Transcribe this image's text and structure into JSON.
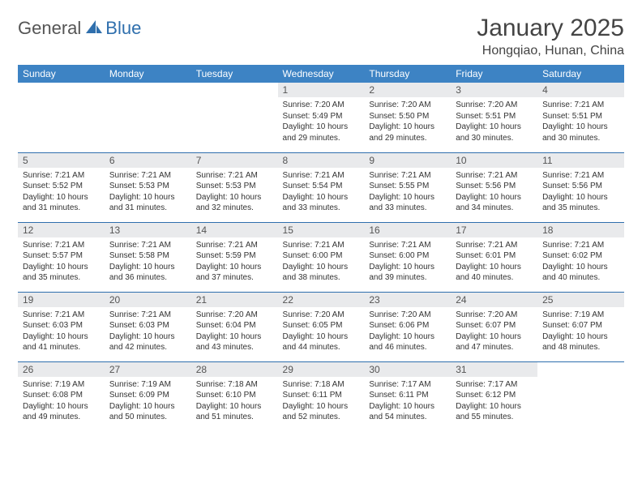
{
  "logo": {
    "general": "General",
    "blue": "Blue"
  },
  "title": "January 2025",
  "location": "Hongqiao, Hunan, China",
  "colors": {
    "header_bg": "#3d83c4",
    "header_text": "#ffffff",
    "daynum_bg": "#e9eaec",
    "border": "#2f6fad",
    "text": "#333333",
    "logo_gray": "#555555",
    "logo_blue": "#2f6fad",
    "background": "#ffffff"
  },
  "typography": {
    "title_fontsize": 30,
    "location_fontsize": 16,
    "header_fontsize": 12,
    "daynum_fontsize": 12,
    "body_fontsize": 10
  },
  "weekdays": [
    "Sunday",
    "Monday",
    "Tuesday",
    "Wednesday",
    "Thursday",
    "Friday",
    "Saturday"
  ],
  "weeks": [
    [
      null,
      null,
      null,
      {
        "num": "1",
        "sunrise": "7:20 AM",
        "sunset": "5:49 PM",
        "daylight": "10 hours and 29 minutes."
      },
      {
        "num": "2",
        "sunrise": "7:20 AM",
        "sunset": "5:50 PM",
        "daylight": "10 hours and 29 minutes."
      },
      {
        "num": "3",
        "sunrise": "7:20 AM",
        "sunset": "5:51 PM",
        "daylight": "10 hours and 30 minutes."
      },
      {
        "num": "4",
        "sunrise": "7:21 AM",
        "sunset": "5:51 PM",
        "daylight": "10 hours and 30 minutes."
      }
    ],
    [
      {
        "num": "5",
        "sunrise": "7:21 AM",
        "sunset": "5:52 PM",
        "daylight": "10 hours and 31 minutes."
      },
      {
        "num": "6",
        "sunrise": "7:21 AM",
        "sunset": "5:53 PM",
        "daylight": "10 hours and 31 minutes."
      },
      {
        "num": "7",
        "sunrise": "7:21 AM",
        "sunset": "5:53 PM",
        "daylight": "10 hours and 32 minutes."
      },
      {
        "num": "8",
        "sunrise": "7:21 AM",
        "sunset": "5:54 PM",
        "daylight": "10 hours and 33 minutes."
      },
      {
        "num": "9",
        "sunrise": "7:21 AM",
        "sunset": "5:55 PM",
        "daylight": "10 hours and 33 minutes."
      },
      {
        "num": "10",
        "sunrise": "7:21 AM",
        "sunset": "5:56 PM",
        "daylight": "10 hours and 34 minutes."
      },
      {
        "num": "11",
        "sunrise": "7:21 AM",
        "sunset": "5:56 PM",
        "daylight": "10 hours and 35 minutes."
      }
    ],
    [
      {
        "num": "12",
        "sunrise": "7:21 AM",
        "sunset": "5:57 PM",
        "daylight": "10 hours and 35 minutes."
      },
      {
        "num": "13",
        "sunrise": "7:21 AM",
        "sunset": "5:58 PM",
        "daylight": "10 hours and 36 minutes."
      },
      {
        "num": "14",
        "sunrise": "7:21 AM",
        "sunset": "5:59 PM",
        "daylight": "10 hours and 37 minutes."
      },
      {
        "num": "15",
        "sunrise": "7:21 AM",
        "sunset": "6:00 PM",
        "daylight": "10 hours and 38 minutes."
      },
      {
        "num": "16",
        "sunrise": "7:21 AM",
        "sunset": "6:00 PM",
        "daylight": "10 hours and 39 minutes."
      },
      {
        "num": "17",
        "sunrise": "7:21 AM",
        "sunset": "6:01 PM",
        "daylight": "10 hours and 40 minutes."
      },
      {
        "num": "18",
        "sunrise": "7:21 AM",
        "sunset": "6:02 PM",
        "daylight": "10 hours and 40 minutes."
      }
    ],
    [
      {
        "num": "19",
        "sunrise": "7:21 AM",
        "sunset": "6:03 PM",
        "daylight": "10 hours and 41 minutes."
      },
      {
        "num": "20",
        "sunrise": "7:21 AM",
        "sunset": "6:03 PM",
        "daylight": "10 hours and 42 minutes."
      },
      {
        "num": "21",
        "sunrise": "7:20 AM",
        "sunset": "6:04 PM",
        "daylight": "10 hours and 43 minutes."
      },
      {
        "num": "22",
        "sunrise": "7:20 AM",
        "sunset": "6:05 PM",
        "daylight": "10 hours and 44 minutes."
      },
      {
        "num": "23",
        "sunrise": "7:20 AM",
        "sunset": "6:06 PM",
        "daylight": "10 hours and 46 minutes."
      },
      {
        "num": "24",
        "sunrise": "7:20 AM",
        "sunset": "6:07 PM",
        "daylight": "10 hours and 47 minutes."
      },
      {
        "num": "25",
        "sunrise": "7:19 AM",
        "sunset": "6:07 PM",
        "daylight": "10 hours and 48 minutes."
      }
    ],
    [
      {
        "num": "26",
        "sunrise": "7:19 AM",
        "sunset": "6:08 PM",
        "daylight": "10 hours and 49 minutes."
      },
      {
        "num": "27",
        "sunrise": "7:19 AM",
        "sunset": "6:09 PM",
        "daylight": "10 hours and 50 minutes."
      },
      {
        "num": "28",
        "sunrise": "7:18 AM",
        "sunset": "6:10 PM",
        "daylight": "10 hours and 51 minutes."
      },
      {
        "num": "29",
        "sunrise": "7:18 AM",
        "sunset": "6:11 PM",
        "daylight": "10 hours and 52 minutes."
      },
      {
        "num": "30",
        "sunrise": "7:17 AM",
        "sunset": "6:11 PM",
        "daylight": "10 hours and 54 minutes."
      },
      {
        "num": "31",
        "sunrise": "7:17 AM",
        "sunset": "6:12 PM",
        "daylight": "10 hours and 55 minutes."
      },
      null
    ]
  ],
  "labels": {
    "sunrise": "Sunrise:",
    "sunset": "Sunset:",
    "daylight": "Daylight:"
  }
}
